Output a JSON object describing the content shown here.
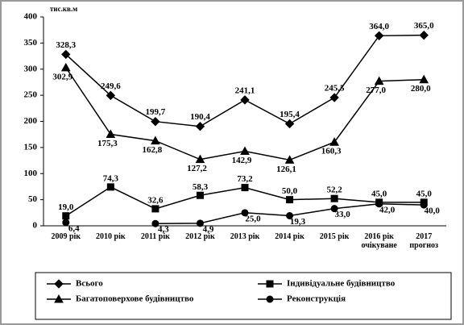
{
  "chart_data": {
    "type": "line",
    "y_label": "тис.кв.м",
    "categories": [
      "2009 рік",
      "2010 рік",
      "2011 рік",
      "2012 рік",
      "2013 рік",
      "2014 рік",
      "2015 рік",
      "2016 рік\nочікуване",
      "2017\nпрогноз"
    ],
    "series": [
      {
        "name": "Всього",
        "color": "#000000",
        "marker": "diamond",
        "values": [
          328.3,
          249.6,
          199.7,
          190.4,
          241.1,
          195.4,
          245.5,
          364.0,
          365.0
        ],
        "value_labels": [
          "328,3",
          "249,6",
          "199,7",
          "190,4",
          "241,1",
          "195,4",
          "245,5",
          "364,0",
          "365,0"
        ]
      },
      {
        "name": "Індивідуальне будівництво",
        "color": "#000000",
        "marker": "square",
        "values": [
          19.0,
          74.3,
          32.6,
          58.3,
          73.2,
          50.0,
          52.2,
          45.0,
          45.0
        ],
        "value_labels": [
          "19,0",
          "74,3",
          "32,6",
          "58,3",
          "73,2",
          "50,0",
          "52,2",
          "45,0",
          "45,0"
        ]
      },
      {
        "name": "Багатоповерхове будівництво",
        "color": "#000000",
        "marker": "triangle",
        "values": [
          302.9,
          175.3,
          162.8,
          127.2,
          142.9,
          126.1,
          160.3,
          277.0,
          280.0
        ],
        "value_labels": [
          "302,9",
          "175,3",
          "162,8",
          "127,2",
          "142,9",
          "126,1",
          "160,3",
          "277,0",
          "280,0"
        ]
      },
      {
        "name": "Реконструкція",
        "color": "#000000",
        "marker": "circle",
        "values": [
          6.4,
          null,
          4.3,
          4.9,
          25.0,
          19.3,
          33.0,
          42.0,
          40.0
        ],
        "value_labels": [
          "6,4",
          null,
          "4,3",
          "4,9",
          "25,0",
          "19,3",
          "33,0",
          "42,0",
          "40,0"
        ]
      }
    ],
    "ylim": [
      0,
      400
    ],
    "yticks": [
      0,
      50,
      100,
      150,
      200,
      250,
      300,
      350,
      400
    ],
    "grid": false
  }
}
